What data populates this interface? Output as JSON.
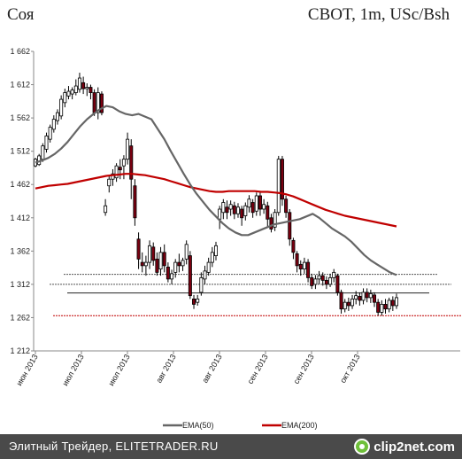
{
  "header": {
    "title": "Соя",
    "subtitle": "CBOT, 1m, USc/Bsh"
  },
  "footer": {
    "text": "Элитный Трейдер, ELITETRADER.RU",
    "logo": "clip2net.com",
    "logo_icon": "clip2net-logo-icon"
  },
  "chart_data": {
    "type": "candlestick",
    "yticks": [
      "1 662",
      "1 612",
      "1 562",
      "1 512",
      "1 462",
      "1 412",
      "1 362",
      "1 312",
      "1 262",
      "1 212"
    ],
    "ylim": [
      1212,
      1662
    ],
    "xticks": [
      "июн 2013",
      "июл 2013",
      "июл 2013",
      "авг 2013",
      "авг 2013",
      "сен 2013",
      "сен 2013",
      "окт 2013"
    ],
    "grid": false,
    "legend": {
      "placement": "bottom",
      "entries": [
        {
          "name": "EMA(50)",
          "color": "#666666"
        },
        {
          "name": "EMA(200)",
          "color": "#c00000"
        }
      ]
    },
    "ema50": [
      1495,
      1498,
      1502,
      1508,
      1516,
      1526,
      1538,
      1550,
      1560,
      1568,
      1575,
      1580,
      1578,
      1572,
      1568,
      1566,
      1568,
      1564,
      1560,
      1545,
      1530,
      1512,
      1495,
      1478,
      1462,
      1448,
      1436,
      1424,
      1414,
      1404,
      1396,
      1390,
      1386,
      1386,
      1390,
      1394,
      1398,
      1402,
      1404,
      1406,
      1408,
      1410,
      1414,
      1418,
      1412,
      1404,
      1396,
      1390,
      1384,
      1376,
      1366,
      1356,
      1348,
      1342,
      1336,
      1330,
      1326
    ],
    "ema200": [
      1456,
      1458,
      1460,
      1461,
      1462,
      1463,
      1465,
      1467,
      1469,
      1471,
      1473,
      1475,
      1476,
      1477,
      1478,
      1478,
      1477,
      1476,
      1474,
      1472,
      1470,
      1467,
      1464,
      1461,
      1458,
      1456,
      1454,
      1452,
      1451,
      1451,
      1452,
      1452,
      1452,
      1452,
      1452,
      1451,
      1451,
      1450,
      1449,
      1447,
      1444,
      1440,
      1436,
      1432,
      1428,
      1424,
      1421,
      1418,
      1415,
      1413,
      1411,
      1409,
      1407,
      1405,
      1403,
      1401,
      1399
    ],
    "candles": [
      [
        1490,
        1500,
        1488,
        1502
      ],
      [
        1492,
        1505,
        1490,
        1508
      ],
      [
        1500,
        1520,
        1496,
        1524
      ],
      [
        1515,
        1535,
        1510,
        1540
      ],
      [
        1530,
        1548,
        1525,
        1552
      ],
      [
        1545,
        1560,
        1540,
        1566
      ],
      [
        1558,
        1570,
        1552,
        1575
      ],
      [
        1565,
        1590,
        1560,
        1596
      ],
      [
        1585,
        1600,
        1578,
        1606
      ],
      [
        1595,
        1602,
        1590,
        1610
      ],
      [
        1598,
        1604,
        1590,
        1608
      ],
      [
        1600,
        1610,
        1596,
        1620
      ],
      [
        1605,
        1622,
        1600,
        1630
      ],
      [
        1615,
        1606,
        1598,
        1624
      ],
      [
        1606,
        1608,
        1595,
        1614
      ],
      [
        1608,
        1600,
        1590,
        1612
      ],
      [
        1600,
        1570,
        1565,
        1605
      ],
      [
        1570,
        1600,
        1560,
        1608
      ],
      [
        1598,
        1570,
        1566,
        1602
      ],
      [
        1420,
        1430,
        1415,
        1440
      ],
      [
        1460,
        1470,
        1450,
        1475
      ],
      [
        1470,
        1478,
        1460,
        1485
      ],
      [
        1472,
        1490,
        1466,
        1494
      ],
      [
        1488,
        1484,
        1470,
        1500
      ],
      [
        1490,
        1500,
        1470,
        1506
      ],
      [
        1500,
        1530,
        1492,
        1540
      ],
      [
        1520,
        1470,
        1440,
        1530
      ],
      [
        1460,
        1412,
        1400,
        1470
      ],
      [
        1380,
        1350,
        1335,
        1390
      ],
      [
        1345,
        1340,
        1330,
        1360
      ],
      [
        1340,
        1345,
        1325,
        1355
      ],
      [
        1345,
        1370,
        1335,
        1378
      ],
      [
        1368,
        1348,
        1340,
        1375
      ],
      [
        1350,
        1330,
        1325,
        1360
      ],
      [
        1335,
        1360,
        1325,
        1368
      ],
      [
        1360,
        1340,
        1330,
        1372
      ],
      [
        1338,
        1320,
        1315,
        1345
      ],
      [
        1320,
        1328,
        1312,
        1334
      ],
      [
        1330,
        1345,
        1322,
        1350
      ],
      [
        1345,
        1340,
        1330,
        1358
      ],
      [
        1340,
        1348,
        1332,
        1352
      ],
      [
        1350,
        1372,
        1342,
        1378
      ],
      [
        1355,
        1295,
        1290,
        1362
      ],
      [
        1290,
        1282,
        1275,
        1296
      ],
      [
        1285,
        1290,
        1280,
        1296
      ],
      [
        1300,
        1322,
        1295,
        1330
      ],
      [
        1320,
        1332,
        1312,
        1340
      ],
      [
        1330,
        1345,
        1325,
        1352
      ],
      [
        1345,
        1360,
        1338,
        1368
      ],
      [
        1355,
        1370,
        1348,
        1376
      ],
      [
        1410,
        1425,
        1395,
        1430
      ],
      [
        1420,
        1435,
        1410,
        1440
      ],
      [
        1428,
        1420,
        1410,
        1438
      ],
      [
        1425,
        1432,
        1415,
        1438
      ],
      [
        1430,
        1418,
        1410,
        1436
      ],
      [
        1418,
        1428,
        1412,
        1434
      ],
      [
        1425,
        1412,
        1400,
        1430
      ],
      [
        1415,
        1430,
        1408,
        1435
      ],
      [
        1428,
        1440,
        1420,
        1446
      ],
      [
        1435,
        1420,
        1412,
        1440
      ],
      [
        1422,
        1445,
        1415,
        1450
      ],
      [
        1445,
        1425,
        1415,
        1452
      ],
      [
        1425,
        1432,
        1418,
        1440
      ],
      [
        1430,
        1410,
        1398,
        1436
      ],
      [
        1412,
        1395,
        1390,
        1418
      ],
      [
        1398,
        1420,
        1392,
        1425
      ],
      [
        1420,
        1500,
        1415,
        1505
      ],
      [
        1500,
        1440,
        1430,
        1505
      ],
      [
        1440,
        1420,
        1412,
        1445
      ],
      [
        1420,
        1380,
        1370,
        1425
      ],
      [
        1378,
        1360,
        1350,
        1382
      ],
      [
        1358,
        1340,
        1330,
        1362
      ],
      [
        1342,
        1335,
        1325,
        1348
      ],
      [
        1335,
        1345,
        1328,
        1352
      ],
      [
        1345,
        1322,
        1315,
        1350
      ],
      [
        1322,
        1310,
        1305,
        1328
      ],
      [
        1312,
        1320,
        1305,
        1326
      ],
      [
        1320,
        1325,
        1312,
        1332
      ],
      [
        1325,
        1318,
        1310,
        1330
      ],
      [
        1318,
        1312,
        1305,
        1324
      ],
      [
        1312,
        1322,
        1308,
        1328
      ],
      [
        1322,
        1330,
        1315,
        1335
      ],
      [
        1325,
        1300,
        1295,
        1328
      ],
      [
        1300,
        1275,
        1268,
        1304
      ],
      [
        1275,
        1285,
        1270,
        1290
      ],
      [
        1285,
        1280,
        1272,
        1292
      ],
      [
        1280,
        1290,
        1275,
        1296
      ],
      [
        1290,
        1295,
        1282,
        1302
      ],
      [
        1294,
        1288,
        1280,
        1300
      ],
      [
        1288,
        1300,
        1282,
        1306
      ],
      [
        1300,
        1292,
        1285,
        1306
      ],
      [
        1292,
        1298,
        1284,
        1304
      ],
      [
        1296,
        1285,
        1278,
        1300
      ],
      [
        1285,
        1270,
        1265,
        1290
      ],
      [
        1270,
        1282,
        1265,
        1288
      ],
      [
        1282,
        1275,
        1268,
        1290
      ],
      [
        1275,
        1288,
        1270,
        1292
      ],
      [
        1288,
        1280,
        1272,
        1294
      ],
      [
        1280,
        1292,
        1275,
        1298
      ]
    ],
    "hlines": [
      {
        "y": 1327,
        "style": "dotted",
        "color": "#555555"
      },
      {
        "y": 1312,
        "style": "dotted",
        "color": "#555555"
      },
      {
        "y": 1299,
        "style": "solid",
        "color": "#222222"
      },
      {
        "y": 1265,
        "style": "dotted",
        "color": "#c00000"
      }
    ]
  }
}
